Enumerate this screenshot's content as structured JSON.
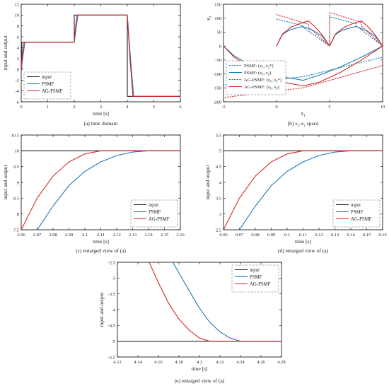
{
  "colors": {
    "input": "#222222",
    "psmf": "#1f77b4",
    "agpsmf": "#d62728",
    "frame": "#000000"
  },
  "chart_data": [
    {
      "id": "a",
      "type": "line",
      "caption": "(a) time domain",
      "xlabel": "time [s]",
      "ylabel": "input and output",
      "xlim": [
        0,
        6
      ],
      "ylim": [
        -6,
        12
      ],
      "xticks": [
        "0",
        "1",
        "2",
        "3",
        "4",
        "5",
        "6"
      ],
      "yticks": [
        "-6",
        "-4",
        "-2",
        "0",
        "2",
        "4",
        "6",
        "8",
        "10",
        "12"
      ],
      "legend": {
        "position": "bottom-left",
        "entries": [
          "input",
          "PSMF",
          "AG-PSMF"
        ]
      },
      "series": [
        {
          "name": "input",
          "style": "solid",
          "color": "#222222",
          "x": [
            0,
            0.02,
            0.02,
            2.0,
            2.0,
            4.0,
            4.0,
            6.0
          ],
          "y": [
            0,
            0,
            5,
            5,
            10,
            10,
            -5,
            -5
          ]
        },
        {
          "name": "PSMF",
          "style": "solid",
          "color": "#1f77b4",
          "x": [
            0,
            0.07,
            0.14,
            2.0,
            2.07,
            2.14,
            4.0,
            4.12,
            4.24,
            6.0
          ],
          "y": [
            0,
            2.6,
            5,
            5,
            7.6,
            10,
            10,
            2.0,
            -5,
            -5
          ]
        },
        {
          "name": "AG-PSMF",
          "style": "solid",
          "color": "#d62728",
          "x": [
            0,
            0.05,
            0.11,
            2.0,
            2.05,
            2.11,
            4.0,
            4.1,
            4.21,
            6.0
          ],
          "y": [
            0,
            3.0,
            5,
            5,
            8.0,
            10,
            10,
            2.0,
            -5,
            -5
          ]
        }
      ]
    },
    {
      "id": "b",
      "type": "line",
      "caption": "(b) x1-x2 space",
      "xlabel": "x1",
      "ylabel": "x2",
      "xlim": [
        -5,
        10
      ],
      "ylim": [
        -200,
        150
      ],
      "xticks": [
        "-5",
        "0",
        "5",
        "10"
      ],
      "yticks": [
        "-200",
        "-150",
        "-100",
        "-50",
        "0",
        "50",
        "100",
        "150"
      ],
      "legend": {
        "position": "bottom-left",
        "entries": [
          "PSMF: (x1, x2*)",
          "PSMF: (x1, x2)",
          "AG-PSMF: (x1, x2*)",
          "AG-PSMF: (x1, x2)"
        ]
      },
      "series": [
        {
          "name": "PSMF: (x1, x2*)",
          "style": "dashed",
          "color": "#1f77b4",
          "x": [
            0,
            2.5,
            2.5,
            5,
            5,
            7.5,
            7.5,
            10,
            10,
            2.5,
            -5
          ],
          "y": [
            97,
            73,
            67,
            0,
            105,
            80,
            73,
            0,
            -40,
            -110,
            -140
          ]
        },
        {
          "name": "PSMF: (x1, x2)",
          "style": "solid",
          "color": "#1f77b4",
          "x": [
            0,
            0.5,
            1.2,
            2.0,
            2.5,
            3.5,
            4.3,
            5,
            5.5,
            6.2,
            7.0,
            7.5,
            8.5,
            9.3,
            10,
            8,
            6,
            4,
            2.5,
            0.5,
            -2,
            -4,
            -5
          ],
          "y": [
            0,
            40,
            57,
            66,
            70,
            55,
            35,
            0,
            40,
            57,
            66,
            70,
            55,
            35,
            0,
            -40,
            -75,
            -105,
            -123,
            -110,
            -80,
            -35,
            0
          ]
        },
        {
          "name": "AG-PSMF: (x1, x2*)",
          "style": "dashed",
          "color": "#d62728",
          "x": [
            0,
            3,
            3,
            5,
            5,
            8,
            8,
            10,
            10,
            2.5,
            -5
          ],
          "y": [
            113,
            78,
            68,
            0,
            120,
            85,
            72,
            0,
            -70,
            -150,
            -185
          ]
        },
        {
          "name": "AG-PSMF: (x1, x2)",
          "style": "solid",
          "color": "#d62728",
          "x": [
            0,
            0.6,
            1.4,
            2.3,
            3.0,
            3.6,
            4.3,
            5,
            5.6,
            6.4,
            7.3,
            8.0,
            8.6,
            9.3,
            10,
            8,
            6,
            4,
            2.5,
            0,
            -2,
            -4,
            -5
          ],
          "y": [
            0,
            45,
            68,
            82,
            90,
            70,
            40,
            0,
            45,
            68,
            82,
            90,
            70,
            40,
            0,
            -50,
            -95,
            -130,
            -143,
            -125,
            -90,
            -40,
            0
          ]
        }
      ]
    },
    {
      "id": "c",
      "type": "line",
      "caption": "(c) enlarged view of (a)",
      "xlabel": "time [s]",
      "ylabel": "input and output",
      "xlim": [
        2.06,
        2.16
      ],
      "ylim": [
        7.5,
        10.5
      ],
      "xticks": [
        "2.06",
        "2.07",
        "2.08",
        "2.09",
        "2.1",
        "2.11",
        "2.12",
        "2.13",
        "2.14",
        "2.15",
        "2.16"
      ],
      "yticks": [
        "7.5",
        "8",
        "8.5",
        "9",
        "9.5",
        "10",
        "10.5"
      ],
      "legend": {
        "position": "bottom-right",
        "entries": [
          "input",
          "PSMF",
          "AG-PSMF"
        ]
      },
      "series": [
        {
          "name": "input",
          "style": "solid",
          "color": "#222222",
          "x": [
            2.06,
            2.16
          ],
          "y": [
            10,
            10
          ]
        },
        {
          "name": "PSMF",
          "style": "solid",
          "color": "#1f77b4",
          "x": [
            2.07,
            2.08,
            2.09,
            2.1,
            2.11,
            2.12,
            2.13,
            2.14,
            2.16
          ],
          "y": [
            7.5,
            8.25,
            8.9,
            9.35,
            9.65,
            9.85,
            9.96,
            10,
            10
          ]
        },
        {
          "name": "AG-PSMF",
          "style": "solid",
          "color": "#d62728",
          "x": [
            2.06,
            2.07,
            2.08,
            2.09,
            2.1,
            2.11,
            2.16
          ],
          "y": [
            7.5,
            8.5,
            9.2,
            9.65,
            9.9,
            10,
            10
          ]
        }
      ]
    },
    {
      "id": "d",
      "type": "line",
      "caption": "(d) enlarged view of (a)",
      "xlabel": "time [s]",
      "ylabel": "input and output",
      "xlim": [
        0.06,
        0.16
      ],
      "ylim": [
        2.5,
        5.5
      ],
      "xticks": [
        "0.06",
        "0.07",
        "0.08",
        "0.09",
        "0.1",
        "0.11",
        "0.12",
        "0.13",
        "0.14",
        "0.15",
        "0.16"
      ],
      "yticks": [
        "2.5",
        "3",
        "3.5",
        "4",
        "4.5",
        "5",
        "5.5"
      ],
      "legend": {
        "position": "bottom-right",
        "entries": [
          "input",
          "PSMF",
          "AG-PSMF"
        ]
      },
      "series": [
        {
          "name": "input",
          "style": "solid",
          "color": "#222222",
          "x": [
            0.06,
            0.16
          ],
          "y": [
            5,
            5
          ]
        },
        {
          "name": "PSMF",
          "style": "solid",
          "color": "#1f77b4",
          "x": [
            0.07,
            0.08,
            0.09,
            0.1,
            0.11,
            0.12,
            0.13,
            0.14,
            0.16
          ],
          "y": [
            2.5,
            3.25,
            3.9,
            4.35,
            4.65,
            4.85,
            4.96,
            5,
            5
          ]
        },
        {
          "name": "AG-PSMF",
          "style": "solid",
          "color": "#d62728",
          "x": [
            0.06,
            0.07,
            0.08,
            0.09,
            0.1,
            0.11,
            0.16
          ],
          "y": [
            2.5,
            3.5,
            4.2,
            4.65,
            4.9,
            5,
            5
          ]
        }
      ]
    },
    {
      "id": "e",
      "type": "line",
      "caption": "(e) enlarged view of (a)",
      "xlabel": "time [s]",
      "ylabel": "input and output",
      "xlim": [
        4.12,
        4.28
      ],
      "ylim": [
        -5.5,
        -2.5
      ],
      "xticks": [
        "4.12",
        "4.14",
        "4.16",
        "4.18",
        "4.2",
        "4.22",
        "4.24",
        "4.26",
        "4.28"
      ],
      "yticks": [
        "-5.5",
        "-5",
        "-4.5",
        "-4",
        "-3.5",
        "-3",
        "-2.5"
      ],
      "legend": {
        "position": "top-right",
        "entries": [
          "input",
          "PSMF",
          "AG-PSMF"
        ]
      },
      "series": [
        {
          "name": "input",
          "style": "solid",
          "color": "#222222",
          "x": [
            4.12,
            4.28
          ],
          "y": [
            -5,
            -5
          ]
        },
        {
          "name": "PSMF",
          "style": "solid",
          "color": "#1f77b4",
          "x": [
            4.174,
            4.19,
            4.2,
            4.21,
            4.22,
            4.23,
            4.24,
            4.28
          ],
          "y": [
            -2.5,
            -3.4,
            -3.95,
            -4.4,
            -4.7,
            -4.9,
            -5,
            -5
          ]
        },
        {
          "name": "AG-PSMF",
          "style": "solid",
          "color": "#d62728",
          "x": [
            4.151,
            4.16,
            4.17,
            4.18,
            4.19,
            4.2,
            4.21,
            4.28
          ],
          "y": [
            -2.5,
            -3.15,
            -3.8,
            -4.3,
            -4.65,
            -4.9,
            -5,
            -5
          ]
        }
      ]
    }
  ]
}
